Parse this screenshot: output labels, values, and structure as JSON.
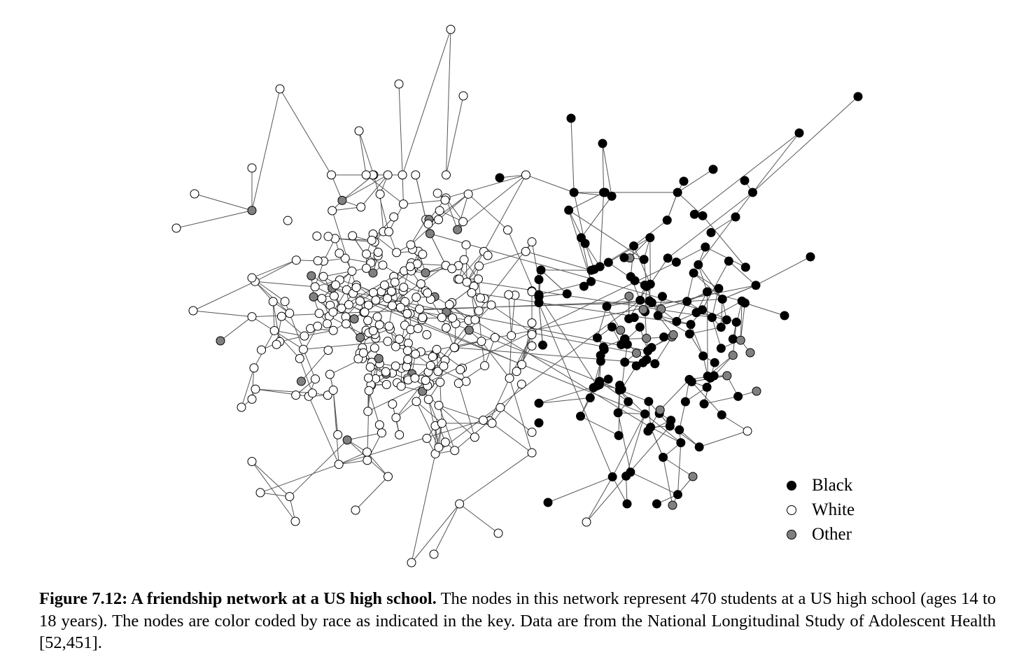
{
  "legend": {
    "items": [
      {
        "key": "black",
        "label": "Black",
        "color": "#000000"
      },
      {
        "key": "white",
        "label": "White",
        "color": "#ffffff"
      },
      {
        "key": "other",
        "label": "Other",
        "color": "#808080"
      }
    ]
  },
  "caption": {
    "title": "Figure 7.12: A friendship network at a US high school.",
    "text": "The nodes in this network represent 470 students at a US high school (ages 14 to 18 years). The nodes are color coded by race as indicated in the key. Data are from the National Longitudinal Study of Adolescent Health [52,451]."
  },
  "colors": {
    "edge": "#555555",
    "node_stroke": "#000000",
    "black": "#000000",
    "white": "#ffffff",
    "other": "#808080"
  }
}
